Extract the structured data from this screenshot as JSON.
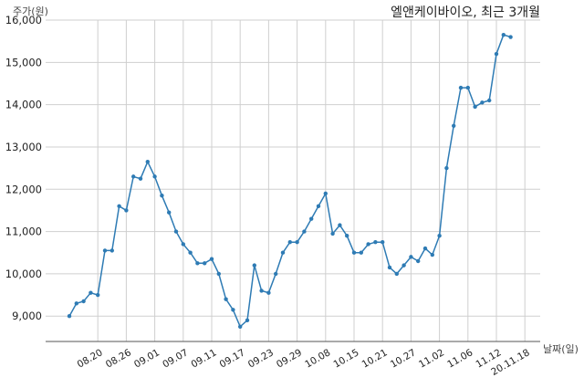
{
  "chart_data": {
    "type": "line",
    "title": "엘앤케이바이오, 최근 3개월",
    "ylabel": "주가(원)",
    "xlabel": "날짜(일)",
    "ylim": [
      8400,
      16000
    ],
    "yticks": [
      9000,
      10000,
      11000,
      12000,
      13000,
      14000,
      15000,
      16000
    ],
    "ytick_labels": [
      "9,000",
      "10,000",
      "11,000",
      "12,000",
      "13,000",
      "14,000",
      "15,000",
      "16,000"
    ],
    "xtick_labels": [
      "08.20",
      "08.26",
      "09.01",
      "09.07",
      "09.11",
      "09.17",
      "09.23",
      "09.29",
      "10.08",
      "10.15",
      "10.21",
      "10.27",
      "11.02",
      "11.06",
      "11.12",
      "20.11.18"
    ],
    "xtick_indices": [
      4,
      8,
      12,
      16,
      20,
      24,
      28,
      32,
      36,
      40,
      44,
      48,
      52,
      56,
      60,
      64
    ],
    "grid": true,
    "line_color": "#2e7bb4",
    "series": [
      {
        "values": [
          9000,
          9300,
          9350,
          9550,
          9500,
          10550,
          10550,
          11600,
          11500,
          12300,
          12250,
          12650,
          12300,
          11850,
          11450,
          11000,
          10700,
          10500,
          10250,
          10250,
          10350,
          10000,
          9400,
          9150,
          8750,
          8900,
          10200,
          9600,
          9550,
          10000,
          10500,
          10750,
          10750,
          11000,
          11300,
          11600,
          11900,
          10950,
          11150,
          10900,
          10500,
          10500,
          10700,
          10750,
          10750,
          10150,
          10000,
          10200,
          10400,
          10300,
          10600,
          10450,
          10900,
          12500,
          13500,
          14400,
          14400,
          13950,
          14050,
          14100,
          15200,
          15650,
          15600
        ]
      }
    ]
  }
}
